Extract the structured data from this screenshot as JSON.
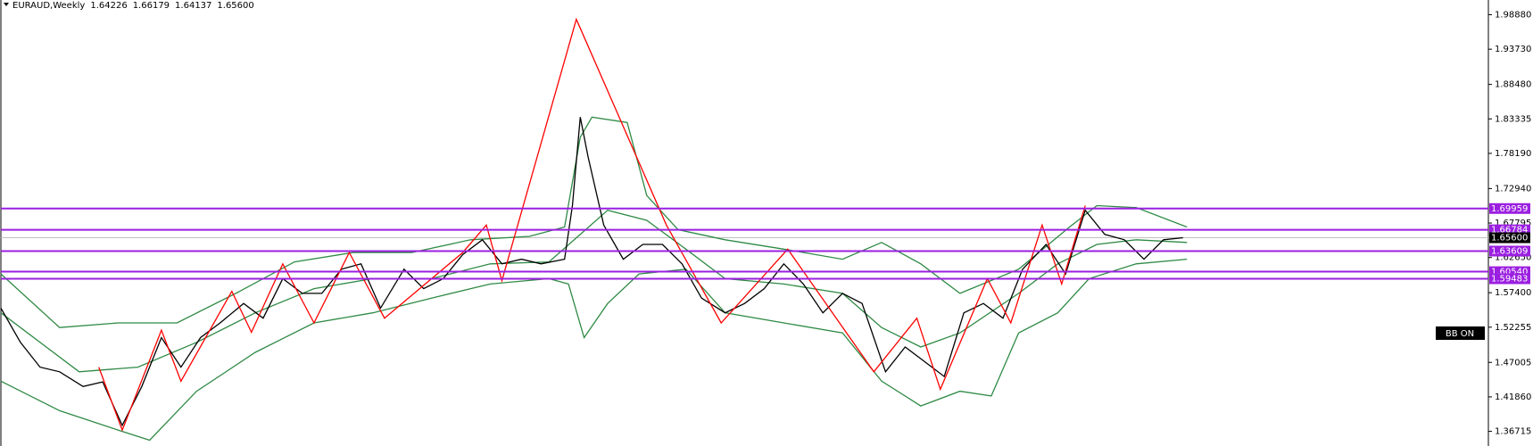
{
  "chart_data": {
    "type": "line",
    "symbol": "EURAUD,Weekly",
    "ohlc": [
      1.64226,
      1.66179,
      1.64137,
      {
        "value": 1.656,
        "label": "1.65600"
      }
    ],
    "button": "BB ON",
    "xlim": [
      0,
      380
    ],
    "ylim": [
      1.3453,
      2.0107
    ],
    "yticks": [
      {
        "value": 1.9888,
        "label": "1.98880"
      },
      {
        "value": 1.9373,
        "label": "1.93730"
      },
      {
        "value": 1.8848,
        "label": "1.88480"
      },
      1.83335,
      {
        "value": 1.7819,
        "label": "1.78190"
      },
      {
        "value": 1.7294,
        "label": "1.72940"
      },
      1.67795,
      {
        "value": 1.6265,
        "label": "1.62650"
      },
      {
        "value": 1.574,
        "label": "1.57400"
      },
      1.52255,
      1.47005,
      {
        "value": 1.4186,
        "label": "1.41860"
      },
      1.36715
    ],
    "levels": [
      1.69959,
      1.66784,
      1.63609,
      {
        "value": 1.6054,
        "label": "1.60540"
      },
      1.59483
    ],
    "level_color": "#9b1fe0",
    "current_price": {
      "value": 1.656,
      "label": "1.65600"
    },
    "series": [
      {
        "color": "#2f8a45",
        "x": [
          0,
          15,
          30,
          45,
          60,
          75,
          90,
          105,
          120,
          135,
          144,
          148,
          151,
          160,
          165,
          173,
          185,
          200,
          215,
          225,
          235,
          245,
          260,
          273,
          280,
          290,
          303
        ],
        "values": [
          1.602,
          1.522,
          1.529,
          1.529,
          1.573,
          1.62,
          1.634,
          1.634,
          1.653,
          1.658,
          1.672,
          1.806,
          1.836,
          1.828,
          1.719,
          1.668,
          1.653,
          1.639,
          1.624,
          1.649,
          1.617,
          1.573,
          1.609,
          1.672,
          1.704,
          1.701,
          1.672
        ]
      },
      {
        "color": "#2f8a45",
        "x": [
          0,
          20,
          35,
          50,
          65,
          80,
          95,
          110,
          125,
          140,
          148,
          155,
          165,
          175,
          185,
          200,
          215,
          225,
          235,
          245,
          260,
          270,
          280,
          290,
          303
        ],
        "values": [
          1.544,
          1.456,
          1.463,
          1.5,
          1.544,
          1.58,
          1.595,
          1.595,
          1.617,
          1.62,
          1.661,
          1.697,
          1.682,
          1.639,
          1.595,
          1.587,
          1.573,
          1.522,
          1.493,
          1.514,
          1.573,
          1.617,
          1.646,
          1.653,
          1.649
        ]
      },
      {
        "color": "#2f8a45",
        "x": [
          0,
          15,
          30,
          38,
          50,
          65,
          80,
          95,
          110,
          125,
          140,
          145,
          149,
          155,
          163,
          175,
          185,
          200,
          215,
          225,
          235,
          245,
          253,
          260,
          270,
          278,
          290,
          303
        ],
        "values": [
          1.442,
          1.398,
          1.369,
          1.354,
          1.427,
          1.485,
          1.529,
          1.544,
          1.566,
          1.587,
          1.595,
          1.587,
          1.507,
          1.558,
          1.602,
          1.609,
          1.544,
          1.529,
          1.514,
          1.442,
          1.405,
          1.427,
          1.42,
          1.514,
          1.544,
          1.595,
          1.617,
          1.624
        ]
      },
      {
        "color": "#000000",
        "x": [
          0,
          5,
          10,
          15,
          21,
          26,
          31,
          36,
          41,
          46,
          51,
          56,
          62,
          67,
          72,
          77,
          82,
          87,
          92,
          97,
          103,
          108,
          113,
          118,
          123,
          128,
          133,
          138,
          144,
          146,
          148,
          150,
          154,
          159,
          164,
          169,
          174,
          179,
          185,
          190,
          195,
          200,
          205,
          210,
          215,
          220,
          226,
          231,
          236,
          241,
          246,
          251,
          256,
          261,
          267,
          272,
          277,
          282,
          287,
          292,
          297,
          302
        ],
        "values": [
          1.551,
          1.5,
          1.463,
          1.456,
          1.434,
          1.441,
          1.376,
          1.434,
          1.507,
          1.463,
          1.507,
          1.529,
          1.558,
          1.536,
          1.595,
          1.573,
          1.573,
          1.609,
          1.617,
          1.551,
          1.609,
          1.58,
          1.595,
          1.631,
          1.653,
          1.617,
          1.624,
          1.617,
          1.624,
          1.704,
          1.836,
          1.777,
          1.675,
          1.624,
          1.646,
          1.646,
          1.617,
          1.566,
          1.544,
          1.558,
          1.58,
          1.617,
          1.587,
          1.544,
          1.573,
          1.558,
          1.456,
          1.493,
          1.471,
          1.449,
          1.544,
          1.558,
          1.536,
          1.609,
          1.646,
          1.602,
          1.697,
          1.661,
          1.653,
          1.624,
          1.653,
          1.656
        ]
      },
      {
        "color": "#ff0000",
        "x": [
          25,
          31,
          41,
          46,
          59,
          64,
          72,
          80,
          89,
          98,
          118,
          124,
          128,
          147,
          170,
          184,
          201,
          223,
          234,
          240,
          252,
          258,
          266,
          271,
          277
        ],
        "values": [
          1.463,
          1.369,
          1.518,
          1.442,
          1.576,
          1.515,
          1.617,
          1.529,
          1.634,
          1.536,
          1.634,
          1.675,
          1.592,
          1.982,
          1.675,
          1.529,
          1.639,
          1.456,
          1.536,
          1.43,
          1.595,
          1.529,
          1.675,
          1.587,
          1.704
        ]
      }
    ]
  }
}
